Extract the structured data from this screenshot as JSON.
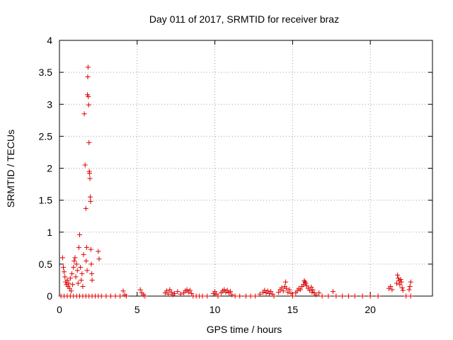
{
  "chart_data": {
    "type": "scatter",
    "title": "Day 011 of 2017, SRMTID for receiver braz",
    "xlabel": "GPS time / hours",
    "ylabel": "SRMTID / TECUs",
    "xlim": [
      0,
      24
    ],
    "ylim": [
      0,
      4
    ],
    "xticks": [
      0,
      5,
      10,
      15,
      20
    ],
    "yticks": [
      0,
      0.5,
      1,
      1.5,
      2,
      2.5,
      3,
      3.5,
      4
    ],
    "xtick_labels": [
      "0",
      "5",
      "10",
      "15",
      "20"
    ],
    "ytick_labels": [
      "0",
      "0.5",
      "1",
      "1.5",
      "2",
      "2.5",
      "3",
      "3.5",
      "4"
    ],
    "grid": true,
    "marker": "plus",
    "color": "#e00000",
    "series": [
      {
        "name": "SRMTID",
        "points": [
          [
            0.2,
            0.6
          ],
          [
            0.25,
            0.45
          ],
          [
            0.3,
            0.38
          ],
          [
            0.35,
            0.3
          ],
          [
            0.4,
            0.22
          ],
          [
            0.45,
            0.18
          ],
          [
            0.5,
            0.25
          ],
          [
            0.55,
            0.15
          ],
          [
            0.6,
            0.2
          ],
          [
            0.65,
            0.12
          ],
          [
            0.7,
            0.28
          ],
          [
            0.75,
            0.08
          ],
          [
            0.8,
            0.35
          ],
          [
            0.85,
            0.18
          ],
          [
            0.9,
            0.45
          ],
          [
            0.95,
            0.55
          ],
          [
            1.0,
            0.6
          ],
          [
            1.05,
            0.3
          ],
          [
            1.1,
            0.5
          ],
          [
            1.15,
            0.4
          ],
          [
            1.2,
            0.2
          ],
          [
            1.25,
            0.76
          ],
          [
            1.3,
            0.96
          ],
          [
            1.35,
            0.45
          ],
          [
            1.4,
            0.25
          ],
          [
            1.45,
            0.35
          ],
          [
            1.5,
            0.15
          ],
          [
            1.55,
            0.65
          ],
          [
            1.6,
            2.85
          ],
          [
            1.65,
            2.05
          ],
          [
            1.7,
            1.37
          ],
          [
            1.72,
            0.55
          ],
          [
            1.75,
            0.76
          ],
          [
            1.78,
            0.4
          ],
          [
            1.8,
            3.15
          ],
          [
            1.82,
            3.43
          ],
          [
            1.84,
            3.58
          ],
          [
            1.86,
            3.12
          ],
          [
            1.88,
            2.99
          ],
          [
            1.9,
            2.4
          ],
          [
            1.92,
            1.95
          ],
          [
            1.94,
            1.92
          ],
          [
            1.96,
            1.84
          ],
          [
            1.98,
            1.55
          ],
          [
            2.0,
            1.48
          ],
          [
            2.02,
            0.73
          ],
          [
            2.05,
            0.5
          ],
          [
            2.08,
            0.35
          ],
          [
            2.1,
            0.25
          ],
          [
            2.5,
            0.7
          ],
          [
            2.55,
            0.58
          ],
          [
            0.1,
            0.0
          ],
          [
            0.3,
            0.0
          ],
          [
            0.5,
            0.0
          ],
          [
            0.7,
            0.0
          ],
          [
            0.9,
            0.0
          ],
          [
            1.1,
            0.0
          ],
          [
            1.3,
            0.0
          ],
          [
            1.5,
            0.0
          ],
          [
            1.7,
            0.0
          ],
          [
            1.9,
            0.0
          ],
          [
            2.1,
            0.0
          ],
          [
            2.3,
            0.0
          ],
          [
            2.5,
            0.0
          ],
          [
            2.7,
            0.0
          ],
          [
            3.0,
            0.0
          ],
          [
            3.3,
            0.0
          ],
          [
            3.6,
            0.0
          ],
          [
            3.9,
            0.0
          ],
          [
            4.1,
            0.08
          ],
          [
            4.2,
            0.02
          ],
          [
            4.3,
            0.0
          ],
          [
            5.2,
            0.1
          ],
          [
            5.3,
            0.05
          ],
          [
            5.4,
            0.02
          ],
          [
            5.5,
            0.0
          ],
          [
            6.8,
            0.05
          ],
          [
            6.9,
            0.08
          ],
          [
            7.0,
            0.03
          ],
          [
            7.1,
            0.1
          ],
          [
            7.2,
            0.06
          ],
          [
            7.3,
            0.02
          ],
          [
            7.4,
            0.04
          ],
          [
            7.6,
            0.07
          ],
          [
            7.8,
            0.03
          ],
          [
            8.0,
            0.05
          ],
          [
            8.1,
            0.08
          ],
          [
            8.2,
            0.1
          ],
          [
            8.3,
            0.06
          ],
          [
            8.4,
            0.09
          ],
          [
            8.5,
            0.04
          ],
          [
            8.6,
            0.0
          ],
          [
            8.8,
            0.0
          ],
          [
            9.0,
            0.0
          ],
          [
            9.2,
            0.0
          ],
          [
            9.5,
            0.0
          ],
          [
            9.9,
            0.04
          ],
          [
            10.0,
            0.07
          ],
          [
            10.1,
            0.03
          ],
          [
            10.2,
            0.0
          ],
          [
            10.4,
            0.05
          ],
          [
            10.5,
            0.08
          ],
          [
            10.6,
            0.1
          ],
          [
            10.7,
            0.06
          ],
          [
            10.8,
            0.09
          ],
          [
            10.9,
            0.05
          ],
          [
            11.0,
            0.07
          ],
          [
            11.1,
            0.02
          ],
          [
            11.3,
            0.0
          ],
          [
            11.6,
            0.0
          ],
          [
            12.0,
            0.0
          ],
          [
            12.3,
            0.0
          ],
          [
            12.6,
            0.0
          ],
          [
            12.9,
            0.03
          ],
          [
            13.1,
            0.06
          ],
          [
            13.2,
            0.09
          ],
          [
            13.3,
            0.05
          ],
          [
            13.4,
            0.08
          ],
          [
            13.5,
            0.04
          ],
          [
            13.6,
            0.07
          ],
          [
            13.7,
            0.03
          ],
          [
            13.8,
            0.0
          ],
          [
            14.1,
            0.06
          ],
          [
            14.2,
            0.1
          ],
          [
            14.3,
            0.13
          ],
          [
            14.4,
            0.08
          ],
          [
            14.5,
            0.15
          ],
          [
            14.55,
            0.22
          ],
          [
            14.6,
            0.12
          ],
          [
            14.7,
            0.06
          ],
          [
            14.8,
            0.1
          ],
          [
            14.9,
            0.04
          ],
          [
            15.0,
            0.0
          ],
          [
            15.2,
            0.05
          ],
          [
            15.3,
            0.08
          ],
          [
            15.4,
            0.12
          ],
          [
            15.5,
            0.1
          ],
          [
            15.6,
            0.15
          ],
          [
            15.7,
            0.18
          ],
          [
            15.75,
            0.24
          ],
          [
            15.8,
            0.22
          ],
          [
            15.85,
            0.2
          ],
          [
            15.9,
            0.16
          ],
          [
            16.0,
            0.12
          ],
          [
            16.1,
            0.09
          ],
          [
            16.2,
            0.14
          ],
          [
            16.25,
            0.06
          ],
          [
            16.3,
            0.1
          ],
          [
            16.4,
            0.05
          ],
          [
            16.5,
            0.02
          ],
          [
            16.7,
            0.05
          ],
          [
            16.9,
            0.0
          ],
          [
            17.3,
            0.0
          ],
          [
            17.6,
            0.07
          ],
          [
            17.8,
            0.0
          ],
          [
            18.2,
            0.0
          ],
          [
            18.6,
            0.0
          ],
          [
            19.0,
            0.0
          ],
          [
            19.5,
            0.0
          ],
          [
            20.0,
            0.0
          ],
          [
            20.5,
            0.0
          ],
          [
            21.2,
            0.12
          ],
          [
            21.3,
            0.15
          ],
          [
            21.4,
            0.1
          ],
          [
            21.7,
            0.2
          ],
          [
            21.75,
            0.33
          ],
          [
            21.8,
            0.28
          ],
          [
            21.85,
            0.24
          ],
          [
            21.9,
            0.18
          ],
          [
            21.95,
            0.26
          ],
          [
            22.0,
            0.22
          ],
          [
            22.05,
            0.13
          ],
          [
            22.1,
            0.09
          ],
          [
            22.5,
            0.1
          ],
          [
            22.55,
            0.15
          ],
          [
            22.6,
            0.22
          ],
          [
            22.3,
            0.0
          ],
          [
            22.6,
            0.0
          ]
        ]
      }
    ]
  }
}
